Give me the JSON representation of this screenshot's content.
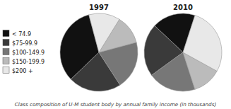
{
  "chart_data": [
    {
      "type": "pie",
      "title": "1997",
      "categories": [
        "< 74.9",
        "$75-99.9",
        "$100-149.9",
        "$150-199.9",
        "$200 +"
      ],
      "values": [
        33,
        22,
        20,
        12,
        13
      ],
      "colors": [
        "#111111",
        "#3a3a3a",
        "#777777",
        "#bbbbbb",
        "#e8e8e8"
      ],
      "legend": "left",
      "annotations": [
        "Class composition of U-M student body by annual family income (in thousands)"
      ]
    },
    {
      "type": "pie",
      "title": "2010",
      "categories": [
        "< 74.9",
        "$75-99.9",
        "$100-149.9",
        "$150-199.9",
        "$200 +"
      ],
      "values": [
        18,
        22,
        20,
        12,
        28
      ],
      "colors": [
        "#111111",
        "#3a3a3a",
        "#777777",
        "#bbbbbb",
        "#e8e8e8"
      ]
    }
  ]
}
